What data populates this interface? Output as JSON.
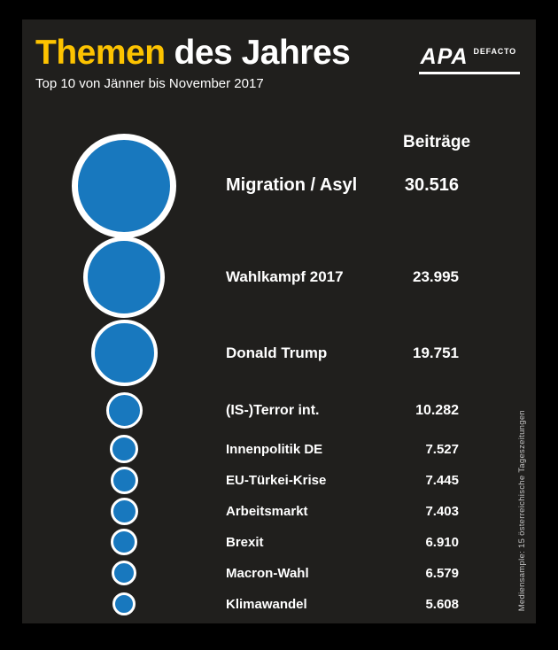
{
  "header": {
    "title_highlight": "Themen",
    "title_rest": "des Jahres",
    "subtitle": "Top 10 von Jänner bis November 2017",
    "logo": {
      "brand": "APA",
      "sub": "DEFACTO"
    }
  },
  "chart_data": {
    "type": "bubble",
    "title": "Themen des Jahres",
    "subtitle": "Top 10 von Jänner bis November 2017",
    "value_header": "Beiträge",
    "categories": [
      "Migration / Asyl",
      "Wahlkampf 2017",
      "Donald Trump",
      "(IS-)Terror int.",
      "Innenpolitik DE",
      "EU-Türkei-Krise",
      "Arbeitsmarkt",
      "Brexit",
      "Macron-Wahl",
      "Klimawandel"
    ],
    "values": [
      30516,
      23995,
      19751,
      10282,
      7527,
      7445,
      7403,
      6910,
      6579,
      5608
    ],
    "value_labels": [
      "30.516",
      "23.995",
      "19.751",
      "10.282",
      "7.527",
      "7.445",
      "7.403",
      "6.910",
      "6.579",
      "5.608"
    ],
    "bubble_color": "#1878be",
    "bubble_ring_color": "#ffffff",
    "note": "Mediensample: 15 österreichische Tageszeitungen",
    "layout": "horizontal rows, bubble size proportional to value, values right-aligned"
  },
  "colors": {
    "accent_yellow": "#fdc300",
    "bubble_blue": "#1878be",
    "background": "#201f1d",
    "frame": "#000000",
    "text": "#ffffff"
  }
}
